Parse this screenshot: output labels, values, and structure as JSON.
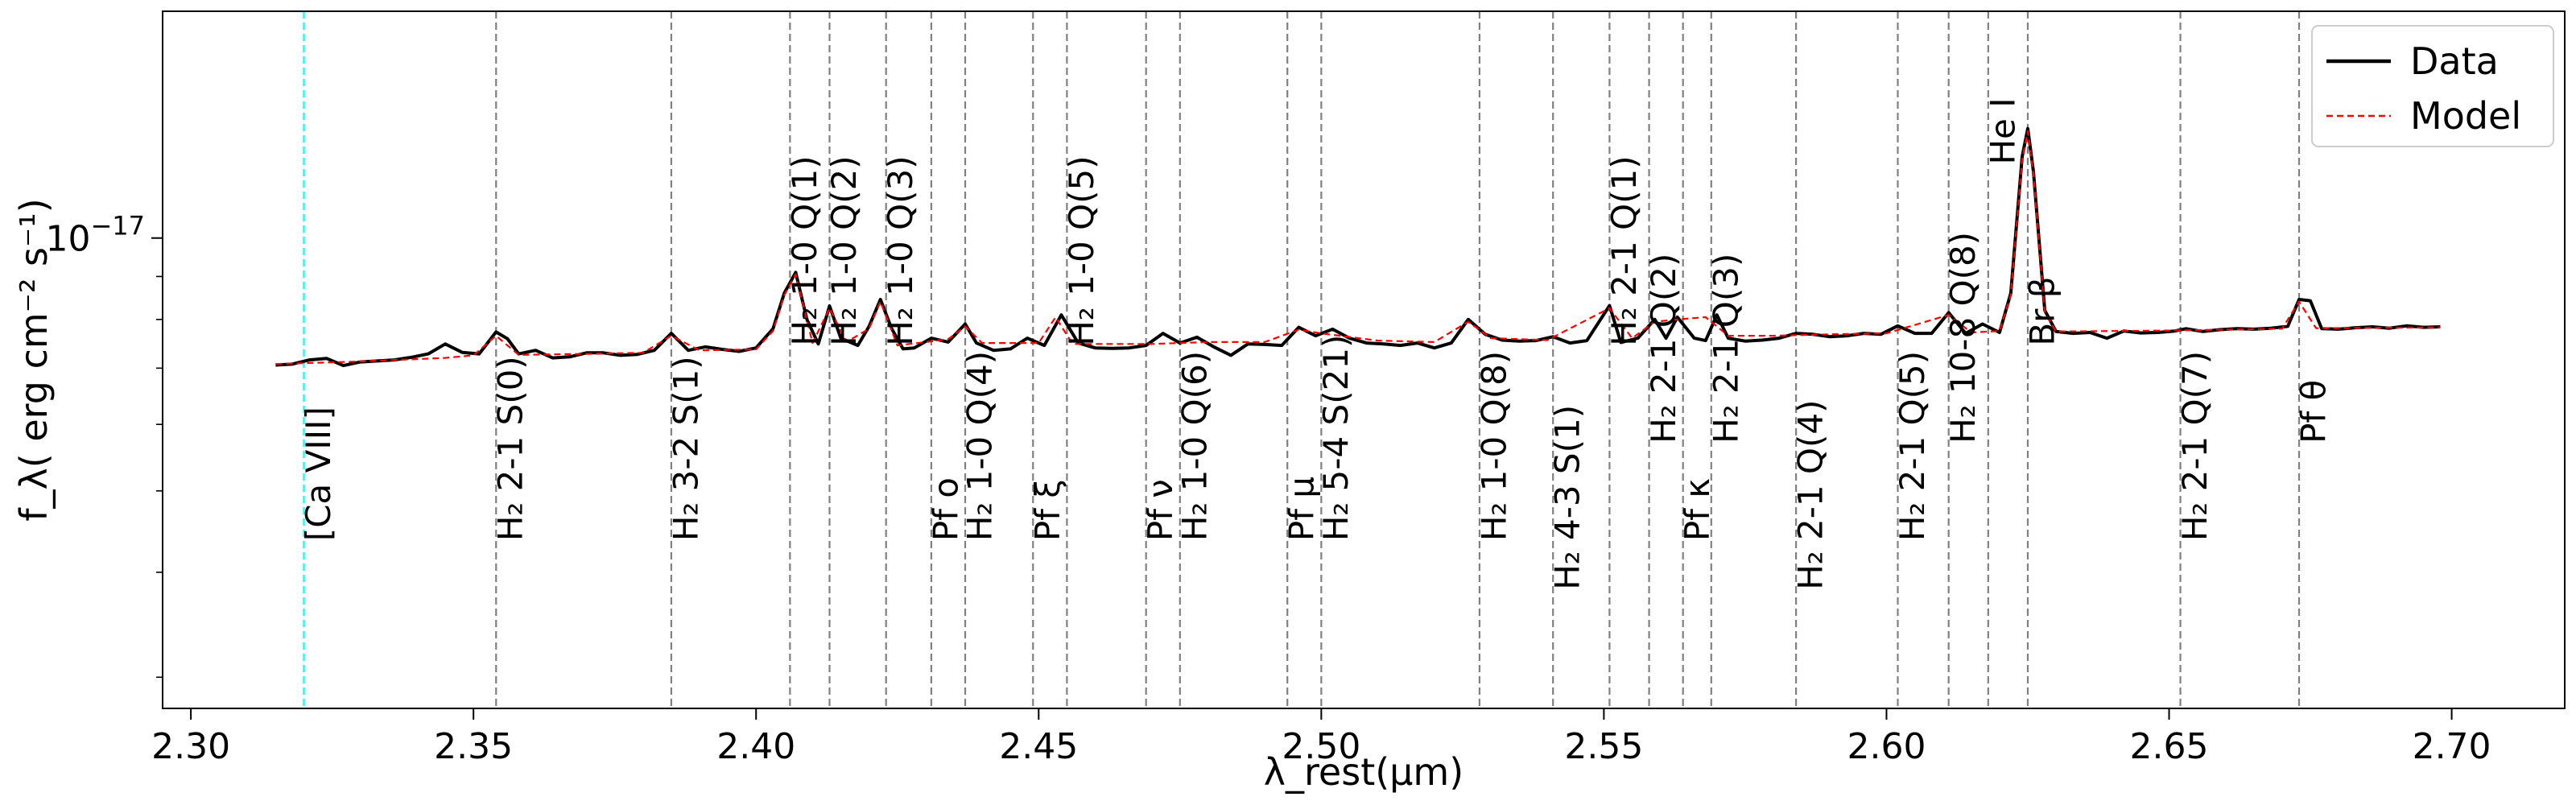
{
  "chart_data": {
    "type": "line",
    "title": "",
    "xlabel": "λ_rest(μm)",
    "ylabel": "f_λ( erg cm⁻² s⁻¹)",
    "xlim": [
      2.295,
      2.72
    ],
    "ylim_log10": [
      -17.56,
      -16.73
    ],
    "y_scale": "log",
    "x_ticks": [
      2.3,
      2.35,
      2.4,
      2.45,
      2.5,
      2.55,
      2.6,
      2.65,
      2.7
    ],
    "x_tick_labels": [
      "2.30",
      "2.35",
      "2.40",
      "2.45",
      "2.50",
      "2.55",
      "2.60",
      "2.65",
      "2.70"
    ],
    "y_ticks": [
      {
        "value": 1e-17,
        "base": "10",
        "exponent": "−17"
      }
    ],
    "legend": {
      "position": "top-right",
      "entries": [
        {
          "label": "Data",
          "color": "#000000",
          "style": "solid"
        },
        {
          "label": "Model",
          "color": "#ff0000",
          "style": "dashed"
        }
      ]
    },
    "series": [
      {
        "name": "Data",
        "color": "#000000",
        "x": [
          2.315,
          2.318,
          2.321,
          2.324,
          2.327,
          2.33,
          2.333,
          2.336,
          2.339,
          2.342,
          2.345,
          2.348,
          2.351,
          2.354,
          2.356,
          2.358,
          2.361,
          2.364,
          2.367,
          2.37,
          2.373,
          2.376,
          2.379,
          2.382,
          2.385,
          2.388,
          2.391,
          2.394,
          2.397,
          2.4,
          2.403,
          2.405,
          2.407,
          2.409,
          2.411,
          2.413,
          2.415,
          2.418,
          2.42,
          2.422,
          2.424,
          2.426,
          2.428,
          2.431,
          2.434,
          2.437,
          2.439,
          2.442,
          2.445,
          2.448,
          2.451,
          2.454,
          2.457,
          2.46,
          2.463,
          2.466,
          2.469,
          2.472,
          2.475,
          2.478,
          2.481,
          2.484,
          2.487,
          2.49,
          2.493,
          2.496,
          2.499,
          2.502,
          2.505,
          2.508,
          2.511,
          2.514,
          2.517,
          2.52,
          2.523,
          2.526,
          2.529,
          2.532,
          2.535,
          2.538,
          2.541,
          2.544,
          2.547,
          2.551,
          2.553,
          2.556,
          2.559,
          2.561,
          2.563,
          2.566,
          2.568,
          2.57,
          2.572,
          2.575,
          2.578,
          2.581,
          2.584,
          2.587,
          2.59,
          2.593,
          2.596,
          2.599,
          2.602,
          2.605,
          2.608,
          2.611,
          2.614,
          2.617,
          2.62,
          2.622,
          2.624,
          2.625,
          2.626,
          2.628,
          2.63,
          2.633,
          2.636,
          2.639,
          2.642,
          2.645,
          2.648,
          2.651,
          2.653,
          2.656,
          2.659,
          2.662,
          2.665,
          2.668,
          2.671,
          2.673,
          2.675,
          2.677,
          2.68,
          2.683,
          2.686,
          2.689,
          2.692,
          2.695,
          2.698
        ],
        "y": [
          0.706,
          0.708,
          0.716,
          0.719,
          0.705,
          0.712,
          0.714,
          0.716,
          0.721,
          0.728,
          0.748,
          0.731,
          0.728,
          0.773,
          0.759,
          0.728,
          0.735,
          0.72,
          0.722,
          0.73,
          0.73,
          0.725,
          0.727,
          0.735,
          0.77,
          0.735,
          0.742,
          0.737,
          0.733,
          0.74,
          0.78,
          0.86,
          0.91,
          0.8,
          0.748,
          0.83,
          0.76,
          0.745,
          0.785,
          0.845,
          0.78,
          0.738,
          0.74,
          0.76,
          0.752,
          0.79,
          0.75,
          0.735,
          0.738,
          0.76,
          0.745,
          0.81,
          0.75,
          0.74,
          0.739,
          0.74,
          0.745,
          0.77,
          0.75,
          0.762,
          0.742,
          0.725,
          0.748,
          0.747,
          0.745,
          0.783,
          0.765,
          0.779,
          0.76,
          0.75,
          0.748,
          0.745,
          0.75,
          0.74,
          0.75,
          0.8,
          0.768,
          0.756,
          0.754,
          0.755,
          0.763,
          0.75,
          0.755,
          0.831,
          0.751,
          0.76,
          0.8,
          0.76,
          0.805,
          0.76,
          0.755,
          0.81,
          0.76,
          0.754,
          0.756,
          0.76,
          0.77,
          0.768,
          0.763,
          0.765,
          0.77,
          0.768,
          0.786,
          0.77,
          0.77,
          0.815,
          0.77,
          0.79,
          0.772,
          0.86,
          1.25,
          1.35,
          1.2,
          0.82,
          0.774,
          0.77,
          0.772,
          0.76,
          0.775,
          0.771,
          0.772,
          0.775,
          0.78,
          0.774,
          0.778,
          0.78,
          0.779,
          0.781,
          0.785,
          0.845,
          0.842,
          0.78,
          0.779,
          0.782,
          0.784,
          0.781,
          0.786,
          0.783,
          0.784
        ]
      },
      {
        "name": "Model",
        "color": "#ff0000",
        "x": [
          2.315,
          2.33,
          2.345,
          2.35,
          2.354,
          2.358,
          2.37,
          2.38,
          2.385,
          2.39,
          2.4,
          2.403,
          2.405,
          2.407,
          2.41,
          2.413,
          2.416,
          2.42,
          2.422,
          2.425,
          2.43,
          2.434,
          2.437,
          2.44,
          2.45,
          2.453,
          2.456,
          2.47,
          2.48,
          2.49,
          2.496,
          2.5,
          2.51,
          2.52,
          2.526,
          2.53,
          2.54,
          2.551,
          2.555,
          2.559,
          2.563,
          2.568,
          2.572,
          2.58,
          2.59,
          2.6,
          2.611,
          2.615,
          2.62,
          2.622,
          2.624,
          2.625,
          2.626,
          2.628,
          2.63,
          2.64,
          2.65,
          2.66,
          2.67,
          2.673,
          2.676,
          2.69,
          2.698
        ],
        "y": [
          0.708,
          0.713,
          0.72,
          0.725,
          0.765,
          0.726,
          0.728,
          0.73,
          0.765,
          0.735,
          0.737,
          0.775,
          0.855,
          0.905,
          0.75,
          0.825,
          0.752,
          0.78,
          0.84,
          0.745,
          0.752,
          0.758,
          0.785,
          0.75,
          0.75,
          0.805,
          0.748,
          0.748,
          0.752,
          0.752,
          0.778,
          0.77,
          0.755,
          0.752,
          0.795,
          0.76,
          0.756,
          0.825,
          0.76,
          0.795,
          0.8,
          0.805,
          0.765,
          0.765,
          0.768,
          0.77,
          0.81,
          0.772,
          0.775,
          0.855,
          1.24,
          1.34,
          1.19,
          0.815,
          0.774,
          0.775,
          0.776,
          0.778,
          0.78,
          0.84,
          0.781,
          0.782,
          0.783
        ]
      }
    ],
    "vertical_lines": [
      {
        "x": 2.32,
        "color": "#00ffff",
        "label": "[Ca VIII]",
        "label_y_frac": 0.76
      },
      {
        "x": 2.354,
        "color": "#808080",
        "label": "H₂ 2-1 S(0)",
        "label_y_frac": 0.76
      },
      {
        "x": 2.385,
        "color": "#808080",
        "label": "H₂ 3-2 S(1)",
        "label_y_frac": 0.76
      },
      {
        "x": 2.406,
        "color": "#808080",
        "label": "H₂ 1-0 Q(1)",
        "label_y_frac": 0.48
      },
      {
        "x": 2.413,
        "color": "#808080",
        "label": "H₂ 1-0 Q(2)",
        "label_y_frac": 0.48
      },
      {
        "x": 2.423,
        "color": "#808080",
        "label": "H₂ 1-0 Q(3)",
        "label_y_frac": 0.48
      },
      {
        "x": 2.431,
        "color": "#808080",
        "label": "Pf ο",
        "label_y_frac": 0.76
      },
      {
        "x": 2.437,
        "color": "#808080",
        "label": "H₂ 1-0 Q(4)",
        "label_y_frac": 0.76
      },
      {
        "x": 2.449,
        "color": "#808080",
        "label": "Pf ξ",
        "label_y_frac": 0.76
      },
      {
        "x": 2.455,
        "color": "#808080",
        "label": "H₂ 1-0 Q(5)",
        "label_y_frac": 0.48
      },
      {
        "x": 2.469,
        "color": "#808080",
        "label": "Pf ν",
        "label_y_frac": 0.76
      },
      {
        "x": 2.475,
        "color": "#808080",
        "label": "H₂ 1-0 Q(6)",
        "label_y_frac": 0.76
      },
      {
        "x": 2.494,
        "color": "#808080",
        "label": "Pf μ",
        "label_y_frac": 0.76
      },
      {
        "x": 2.5,
        "color": "#808080",
        "label": "H₂ 5-4 S(21)",
        "label_y_frac": 0.76
      },
      {
        "x": 2.528,
        "color": "#808080",
        "label": "H₂ 1-0 Q(8)",
        "label_y_frac": 0.76
      },
      {
        "x": 2.541,
        "color": "#808080",
        "label": "H₂ 4-3 S(1)",
        "label_y_frac": 0.83
      },
      {
        "x": 2.551,
        "color": "#808080",
        "label": "H₂ 2-1 Q(1)",
        "label_y_frac": 0.48
      },
      {
        "x": 2.558,
        "color": "#808080",
        "label": "H₂ 2-1 Q(2)",
        "label_y_frac": 0.62
      },
      {
        "x": 2.564,
        "color": "#808080",
        "label": "Pf κ",
        "label_y_frac": 0.76
      },
      {
        "x": 2.569,
        "color": "#808080",
        "label": "H₂ 2-1 Q(3)",
        "label_y_frac": 0.62
      },
      {
        "x": 2.584,
        "color": "#808080",
        "label": "H₂ 2-1 Q(4)",
        "label_y_frac": 0.83
      },
      {
        "x": 2.602,
        "color": "#808080",
        "label": "H₂ 2-1 Q(5)",
        "label_y_frac": 0.76
      },
      {
        "x": 2.611,
        "color": "#808080",
        "label": "H₂ 10-8 Q(8)",
        "label_y_frac": 0.62
      },
      {
        "x": 2.618,
        "color": "#808080",
        "label": "He I",
        "label_y_frac": 0.22
      },
      {
        "x": 2.625,
        "color": "#808080",
        "label": "Br β",
        "label_y_frac": 0.48
      },
      {
        "x": 2.652,
        "color": "#808080",
        "label": "H₂ 2-1 Q(7)",
        "label_y_frac": 0.76
      },
      {
        "x": 2.673,
        "color": "#808080",
        "label": "Pf θ",
        "label_y_frac": 0.62
      }
    ]
  }
}
